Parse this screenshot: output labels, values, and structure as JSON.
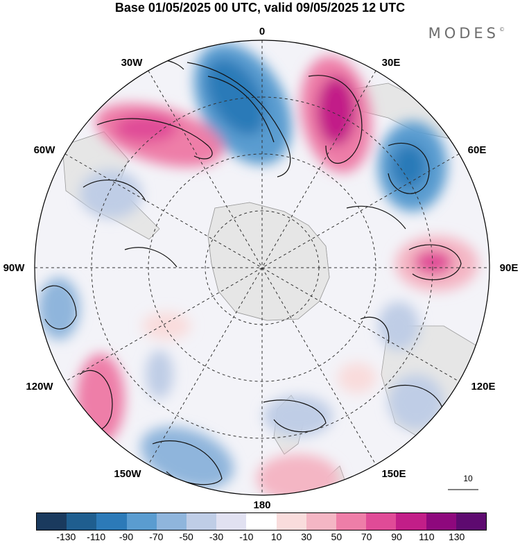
{
  "title": "Base 01/05/2025 00 UTC, valid 09/05/2025 12 UTC",
  "brand": "MODES",
  "brand_mark": "©",
  "longitude_labels": {
    "top": "0",
    "top_right": "30E",
    "right_upper": "60E",
    "right": "90E",
    "right_lower": "120E",
    "bottom_right": "150E",
    "bottom": "180",
    "bottom_left": "150W",
    "left_lower": "120W",
    "left": "90W",
    "left_upper": "60W",
    "top_left": "30W"
  },
  "reference_vector_label": "10",
  "colorbar": {
    "colors": [
      "#1a3a5e",
      "#1f5e8f",
      "#2c7ab8",
      "#5a9cd0",
      "#8fb5dc",
      "#bfcde6",
      "#e1e1f1",
      "#ffffff",
      "#f9dcdc",
      "#f4b6c4",
      "#ee7ea8",
      "#e04b97",
      "#c21e88",
      "#8e087d",
      "#5e0a70"
    ],
    "tick_labels": [
      "-130",
      "-110",
      "-90",
      "-70",
      "-50",
      "-30",
      "-10",
      "10",
      "30",
      "50",
      "70",
      "90",
      "110",
      "130"
    ]
  },
  "colors": {
    "land": "#e3e3e3",
    "neg_strong": "#2c7ab8",
    "neg_mid": "#8fb5dc",
    "neg_weak": "#d5ddee",
    "pos_weak": "#f7d7dc",
    "pos_mid": "#ee7ea8",
    "pos_strong": "#c21e88"
  }
}
